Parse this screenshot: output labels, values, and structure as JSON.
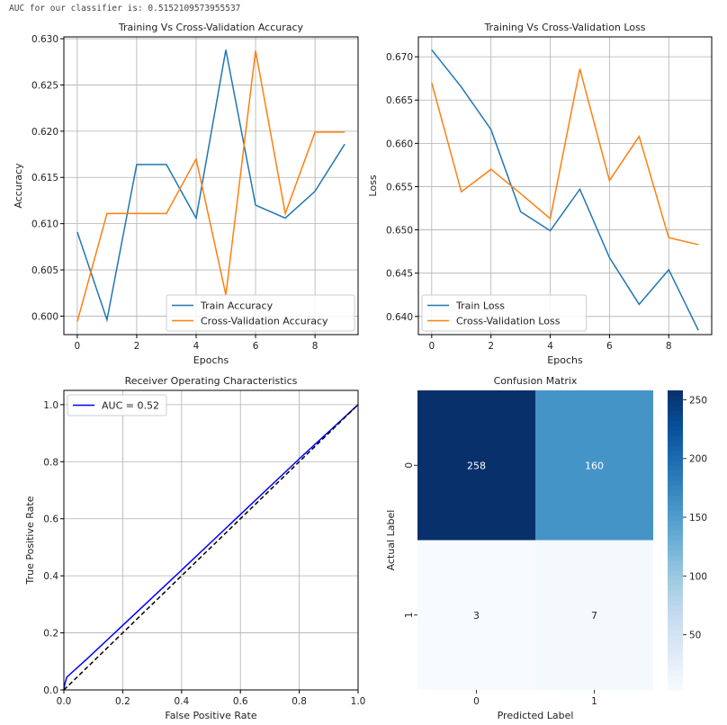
{
  "output_text": "AUC for our classifier is: 0.5152109573955537",
  "chart_data": [
    {
      "type": "line",
      "title": "Training Vs Cross-Validation Accuracy",
      "xlabel": "Epochs",
      "ylabel": "Accuracy",
      "x": [
        0,
        1,
        2,
        3,
        4,
        5,
        6,
        7,
        8,
        9
      ],
      "xlim": [
        -0.45,
        9.45
      ],
      "ylim": [
        0.598,
        0.6302
      ],
      "xticks": [
        0,
        2,
        4,
        6,
        8
      ],
      "yticks": [
        0.6,
        0.605,
        0.61,
        0.615,
        0.62,
        0.625,
        0.63
      ],
      "ytick_labels": [
        "0.600",
        "0.605",
        "0.610",
        "0.615",
        "0.620",
        "0.625",
        "0.630"
      ],
      "grid": true,
      "legend": "lower right",
      "series": [
        {
          "name": "Train Accuracy",
          "color": "#1f77b4",
          "values": [
            0.6091,
            0.5996,
            0.6164,
            0.6164,
            0.6106,
            0.6288,
            0.612,
            0.6106,
            0.6135,
            0.6186
          ]
        },
        {
          "name": "Cross-Validation Accuracy",
          "color": "#ff7f0e",
          "values": [
            0.5994,
            0.6111,
            0.6111,
            0.6111,
            0.617,
            0.6023,
            0.6287,
            0.6111,
            0.6199,
            0.6199
          ]
        }
      ]
    },
    {
      "type": "line",
      "title": "Training Vs Cross-Validation Loss",
      "xlabel": "Epochs",
      "ylabel": "Loss",
      "x": [
        0,
        1,
        2,
        3,
        4,
        5,
        6,
        7,
        8,
        9
      ],
      "xlim": [
        -0.45,
        9.45
      ],
      "ylim": [
        0.6379,
        0.6723
      ],
      "xticks": [
        0,
        2,
        4,
        6,
        8
      ],
      "yticks": [
        0.64,
        0.645,
        0.65,
        0.655,
        0.66,
        0.665,
        0.67
      ],
      "ytick_labels": [
        "0.640",
        "0.645",
        "0.650",
        "0.655",
        "0.660",
        "0.665",
        "0.670"
      ],
      "grid": true,
      "legend": "lower left",
      "series": [
        {
          "name": "Train Loss",
          "color": "#1f77b4",
          "values": [
            0.6708,
            0.6665,
            0.6616,
            0.6521,
            0.6499,
            0.6547,
            0.6468,
            0.6414,
            0.6454,
            0.6384
          ]
        },
        {
          "name": "Cross-Validation Loss",
          "color": "#ff7f0e",
          "values": [
            0.667,
            0.6544,
            0.657,
            0.6542,
            0.6513,
            0.6686,
            0.6557,
            0.6608,
            0.6491,
            0.6483
          ]
        }
      ]
    },
    {
      "type": "line",
      "title": "Receiver Operating Characteristics",
      "xlabel": "False Positive Rate",
      "ylabel": "True Positive Rate",
      "xlim": [
        0,
        1
      ],
      "ylim": [
        0,
        1.05
      ],
      "xticks": [
        0,
        0.2,
        0.4,
        0.6,
        0.8,
        1.0
      ],
      "xtick_labels": [
        "0.0",
        "0.2",
        "0.4",
        "0.6",
        "0.8",
        "1.0"
      ],
      "yticks": [
        0,
        0.2,
        0.4,
        0.6,
        0.8,
        1.0
      ],
      "ytick_labels": [
        "0.0",
        "0.2",
        "0.4",
        "0.6",
        "0.8",
        "1.0"
      ],
      "grid": true,
      "legend": "upper left",
      "series": [
        {
          "name": "AUC = 0.52",
          "color": "#0000ff",
          "x": [
            0,
            0.003,
            0.01,
            0.08,
            0.4,
            0.6,
            0.8,
            1.0
          ],
          "values": [
            0,
            0.02,
            0.045,
            0.11,
            0.42,
            0.615,
            0.81,
            1.0
          ]
        },
        {
          "color": "#000000",
          "dashed": true,
          "x": [
            0,
            1
          ],
          "values": [
            0,
            1
          ]
        }
      ]
    },
    {
      "type": "heatmap",
      "title": "Confusion Matrix",
      "xlabel": "Predicted Label",
      "ylabel": "Actual Label",
      "xtick_labels": [
        "0",
        "1"
      ],
      "ytick_labels": [
        "0",
        "1"
      ],
      "values": [
        [
          258,
          160
        ],
        [
          3,
          7
        ]
      ],
      "cell_labels": [
        [
          "258",
          "160"
        ],
        [
          "3",
          "7"
        ]
      ],
      "colormap": "Blues",
      "colorbar_range": [
        3,
        258
      ],
      "colorbar_ticks": [
        50,
        100,
        150,
        200,
        250
      ],
      "colorbar_tick_labels": [
        "50",
        "100",
        "150",
        "200",
        "250"
      ]
    }
  ]
}
